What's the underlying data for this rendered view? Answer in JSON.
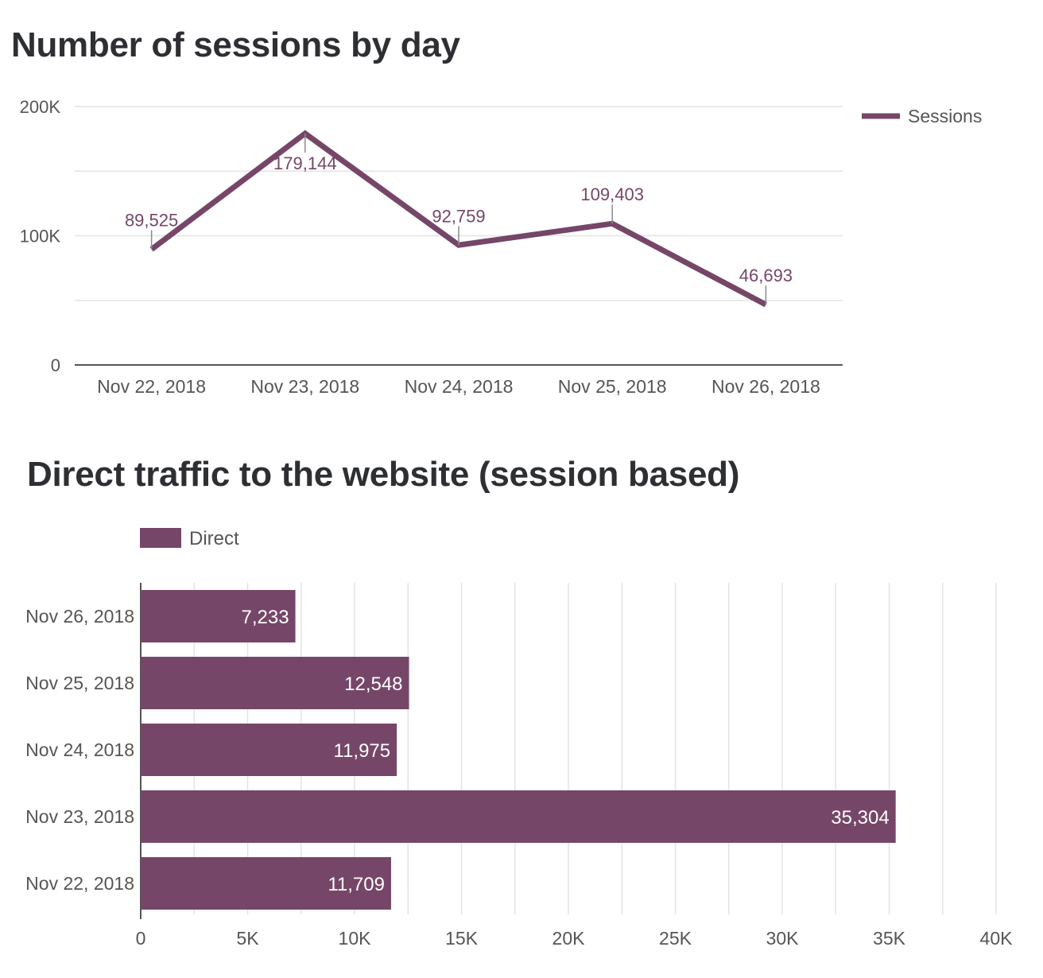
{
  "colors": {
    "series": "#764668",
    "grid": "#e3e3e3",
    "axis": "#555555",
    "tick_text": "#555555",
    "title": "#2d2f33",
    "bar_label": "#ffffff"
  },
  "chart_data": [
    {
      "type": "line",
      "title": "Number of sessions by day",
      "xlabel": "",
      "ylabel": "",
      "x": [
        "Nov 22, 2018",
        "Nov 23, 2018",
        "Nov 24, 2018",
        "Nov 25, 2018",
        "Nov 26, 2018"
      ],
      "y_ticks": [
        "0",
        "100K",
        "200K"
      ],
      "ylim": [
        0,
        200000
      ],
      "grid": true,
      "legend": "right",
      "series": [
        {
          "name": "Sessions",
          "values": [
            89525,
            179144,
            92759,
            109403,
            46693
          ],
          "labels": [
            "89,525",
            "179,144",
            "92,759",
            "109,403",
            "46,693"
          ]
        }
      ]
    },
    {
      "type": "bar",
      "orientation": "horizontal",
      "title": "Direct traffic to the website (session based)",
      "xlabel": "",
      "ylabel": "",
      "categories": [
        "Nov 26, 2018",
        "Nov 25, 2018",
        "Nov 24, 2018",
        "Nov 23, 2018",
        "Nov 22, 2018"
      ],
      "x_ticks": [
        "0",
        "5K",
        "10K",
        "15K",
        "20K",
        "25K",
        "30K",
        "35K",
        "40K"
      ],
      "xlim": [
        0,
        40000
      ],
      "grid": true,
      "legend": "top-left",
      "series": [
        {
          "name": "Direct",
          "values": [
            7233,
            12548,
            11975,
            35304,
            11709
          ],
          "labels": [
            "7,233",
            "12,548",
            "11,975",
            "35,304",
            "11,709"
          ]
        }
      ]
    }
  ]
}
